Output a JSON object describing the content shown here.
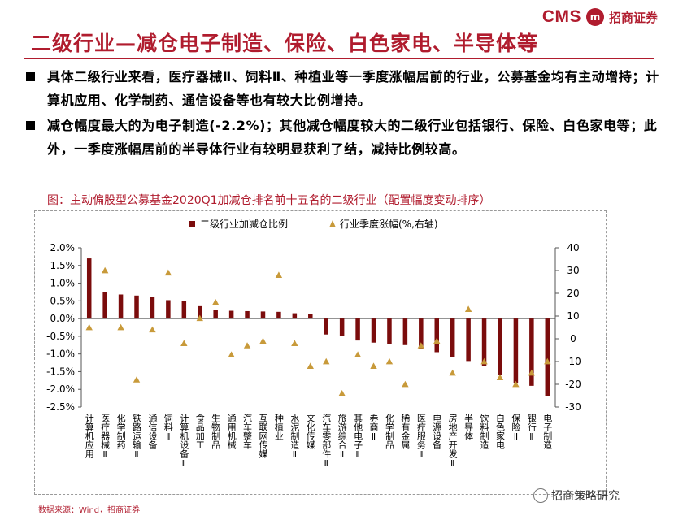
{
  "logo": {
    "cms": "CMS",
    "mark": "m",
    "name": "招商证券"
  },
  "title": "二级行业—减仓电子制造、保险、白色家电、半导体等",
  "bullets": [
    "具体二级行业来看，医疗器械Ⅱ、饲料Ⅱ、种植业等一季度涨幅居前的行业，公募基金均有主动增持；计算机应用、化学制药、通信设备等也有较大比例增持。",
    "减仓幅度最大的为电子制造(-2.2%)；其他减仓幅度较大的二级行业包括银行、保险、白色家电等；此外，一季度涨幅居前的半导体行业有较明显获利了结，减持比例较高。"
  ],
  "figure_title": "图：主动偏股型公募基金2020Q1加减仓排名前十五名的二级行业（配置幅度变动排序）",
  "source": "数据来源：Wind，招商证券",
  "watermark": "招商策略研究",
  "colors": {
    "bar": "#7b0c0c",
    "marker": "#c89a3a",
    "brand": "#b01c2e"
  },
  "chart_data": {
    "type": "bar",
    "title": "主动偏股型公募基金2020Q1加减仓排名前十五名的二级行业（配置幅度变动排序）",
    "categories": [
      "计算机应用",
      "医疗器械Ⅱ",
      "化学制药",
      "铁路运输Ⅱ",
      "通信设备",
      "饲料Ⅱ",
      "计算机设备Ⅱ",
      "食品加工",
      "生物制品",
      "通用机械",
      "汽车整车",
      "互联网传媒",
      "种植业",
      "水泥制造Ⅱ",
      "文化传媒",
      "汽车零部件Ⅱ",
      "旅游综合Ⅱ",
      "其他电子Ⅱ",
      "券商Ⅱ",
      "化学制品",
      "稀有金属",
      "医疗服务Ⅱ",
      "电源设备",
      "房地产开发Ⅱ",
      "半导体",
      "饮料制造",
      "白色家电",
      "保险Ⅱ",
      "银行Ⅱ",
      "电子制造"
    ],
    "series": [
      {
        "name": "二级行业加减仓比例",
        "type": "bar",
        "axis": "left",
        "unit": "%",
        "values": [
          1.7,
          0.75,
          0.68,
          0.65,
          0.6,
          0.52,
          0.5,
          0.35,
          0.25,
          0.22,
          0.21,
          0.2,
          0.19,
          0.15,
          0.14,
          -0.45,
          -0.5,
          -0.62,
          -0.68,
          -0.72,
          -0.75,
          -0.85,
          -0.95,
          -1.08,
          -1.2,
          -1.35,
          -1.6,
          -1.82,
          -1.9,
          -2.2
        ]
      },
      {
        "name": "行业季度涨幅(%,右轴)",
        "type": "scatter",
        "axis": "right",
        "unit": "%",
        "values": [
          5,
          30,
          5,
          -18,
          4,
          29,
          -2,
          9,
          16,
          -7,
          -3,
          -1,
          28,
          -2,
          -12,
          -10,
          -24,
          -7,
          -12,
          -10,
          -20,
          -3,
          -1,
          -15,
          13,
          -10,
          -17,
          -20,
          -15,
          -10
        ]
      }
    ],
    "y_left": {
      "min": -2.5,
      "max": 2.0,
      "step": 0.5,
      "tick_labels": [
        "2.0%",
        "1.5%",
        "1.0%",
        "0.5%",
        "0.0%",
        "-0.5%",
        "-1.0%",
        "-1.5%",
        "-2.0%",
        "-2.5%"
      ]
    },
    "y_right": {
      "min": -30,
      "max": 40,
      "step": 10,
      "tick_labels": [
        "40",
        "30",
        "20",
        "10",
        "0",
        "-10",
        "-20",
        "-30"
      ]
    },
    "legend": {
      "position": "top-center",
      "items": [
        "二级行业加减仓比例",
        "行业季度涨幅(%,右轴)"
      ]
    }
  }
}
